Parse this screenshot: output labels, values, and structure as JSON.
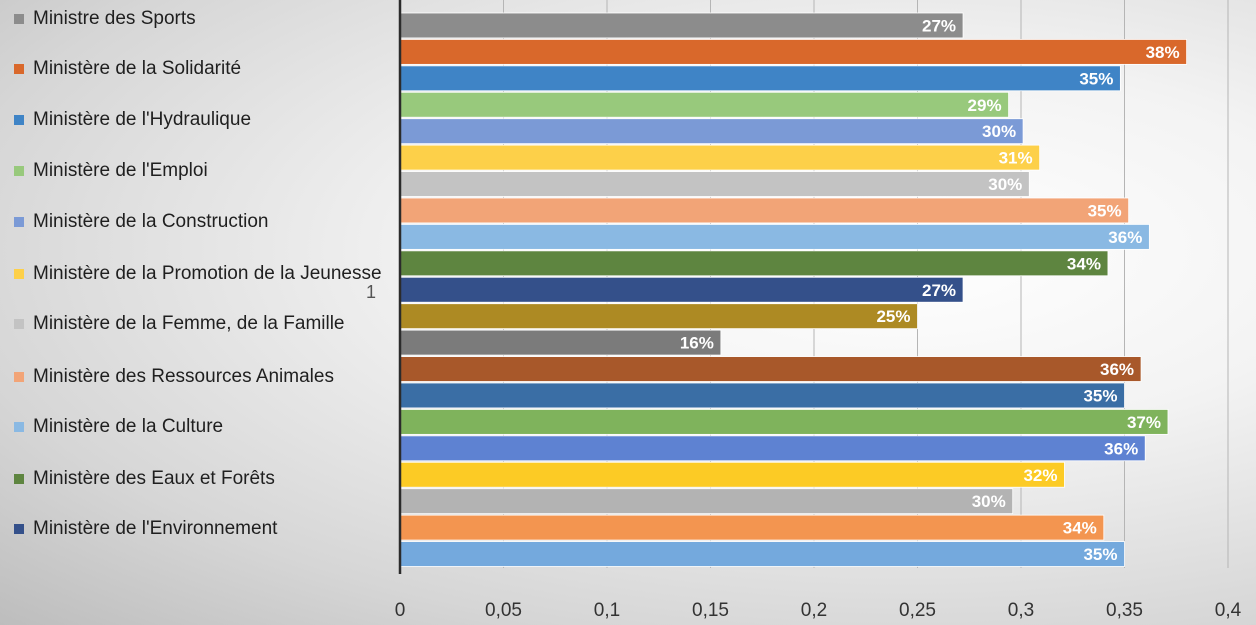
{
  "chart_data": {
    "type": "bar",
    "orientation": "horizontal",
    "category": "1",
    "xlim": [
      0,
      0.4
    ],
    "x_ticks": [
      "0",
      "0,05",
      "0,1",
      "0,15",
      "0,2",
      "0,25",
      "0,3",
      "0,35",
      "0,4"
    ],
    "grid": true,
    "legend_position": "left",
    "series": [
      {
        "name": "Ministre des Sports",
        "value": 0.272,
        "label": "27%",
        "color": "#8c8c8c"
      },
      {
        "name": "Ministère de la Solidarité",
        "value": 0.38,
        "label": "38%",
        "color": "#d9682b"
      },
      {
        "name": "Ministère de l'Hydraulique",
        "value": 0.348,
        "label": "35%",
        "color": "#3f84c6"
      },
      {
        "name": "Ministère de l'Emploi",
        "value": 0.294,
        "label": "29%",
        "color": "#98c97c"
      },
      {
        "name": "Ministère de la Construction",
        "value": 0.301,
        "label": "30%",
        "color": "#7b9ad6"
      },
      {
        "name": "Ministère de la Promotion de la Jeunesse",
        "value": 0.309,
        "label": "31%",
        "color": "#fdd049"
      },
      {
        "name": "Ministère de la Femme, de la Famille",
        "value": 0.304,
        "label": "30%",
        "color": "#c3c3c3"
      },
      {
        "name": "Ministère des Ressources Animales",
        "value": 0.352,
        "label": "35%",
        "color": "#f2a477"
      },
      {
        "name": "Ministère de la Culture",
        "value": 0.362,
        "label": "36%",
        "color": "#8ab9e3"
      },
      {
        "name": "Ministère des Eaux et Forêts",
        "value": 0.342,
        "label": "34%",
        "color": "#5e8540"
      },
      {
        "name": "Ministère de l'Environnement",
        "value": 0.272,
        "label": "27%",
        "color": "#34508a"
      },
      {
        "name": "",
        "value": 0.25,
        "label": "25%",
        "color": "#ad8a23"
      },
      {
        "name": "",
        "value": 0.155,
        "label": "16%",
        "color": "#7b7b7b"
      },
      {
        "name": "",
        "value": 0.358,
        "label": "36%",
        "color": "#a8582a"
      },
      {
        "name": "",
        "value": 0.35,
        "label": "35%",
        "color": "#3a6ea5"
      },
      {
        "name": "",
        "value": 0.371,
        "label": "37%",
        "color": "#7fb35c"
      },
      {
        "name": "",
        "value": 0.36,
        "label": "36%",
        "color": "#5e82d2"
      },
      {
        "name": "",
        "value": 0.321,
        "label": "32%",
        "color": "#fccb25"
      },
      {
        "name": "",
        "value": 0.296,
        "label": "30%",
        "color": "#b3b3b3"
      },
      {
        "name": "",
        "value": 0.34,
        "label": "34%",
        "color": "#f39550"
      },
      {
        "name": "",
        "value": 0.35,
        "label": "35%",
        "color": "#74a9dd"
      }
    ]
  }
}
